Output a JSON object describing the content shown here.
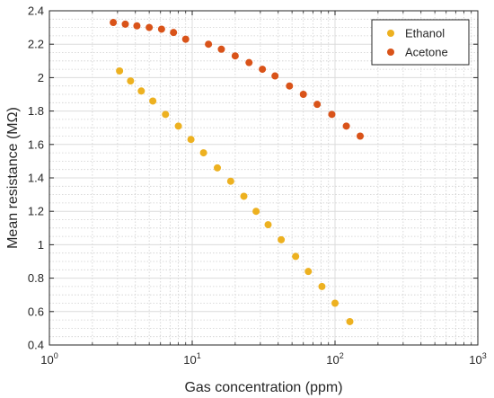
{
  "chart_data": {
    "type": "scatter",
    "title": "",
    "xlabel": "Gas concentration (ppm)",
    "ylabel": "Mean resistance (MΩ)",
    "xscale": "log",
    "xlim": [
      1,
      1000
    ],
    "ylim": [
      0.4,
      2.4
    ],
    "grid": true,
    "minor_grid": true,
    "legend_position": "top-right",
    "x_ticks": [
      {
        "value": 1,
        "base": "10",
        "exp": "0"
      },
      {
        "value": 10,
        "base": "10",
        "exp": "1"
      },
      {
        "value": 100,
        "base": "10",
        "exp": "2"
      },
      {
        "value": 1000,
        "base": "10",
        "exp": "3"
      }
    ],
    "y_ticks": [
      {
        "value": 0.4,
        "label": "0.4"
      },
      {
        "value": 0.6,
        "label": "0.6"
      },
      {
        "value": 0.8,
        "label": "0.8"
      },
      {
        "value": 1.0,
        "label": "1"
      },
      {
        "value": 1.2,
        "label": "1.2"
      },
      {
        "value": 1.4,
        "label": "1.4"
      },
      {
        "value": 1.6,
        "label": "1.6"
      },
      {
        "value": 1.8,
        "label": "1.8"
      },
      {
        "value": 2.0,
        "label": "2"
      },
      {
        "value": 2.2,
        "label": "2.2"
      },
      {
        "value": 2.4,
        "label": "2.4"
      }
    ],
    "series": [
      {
        "name": "Ethanol",
        "color": "#EDB120",
        "x": [
          3.1,
          3.7,
          4.4,
          5.3,
          6.5,
          8.0,
          9.8,
          12.0,
          15.0,
          18.6,
          23.0,
          28.0,
          34.0,
          42.0,
          53.0,
          65.0,
          81.0,
          100.0,
          127.0
        ],
        "y": [
          2.04,
          1.98,
          1.92,
          1.86,
          1.78,
          1.71,
          1.63,
          1.55,
          1.46,
          1.38,
          1.29,
          1.2,
          1.12,
          1.03,
          0.93,
          0.84,
          0.75,
          0.65,
          0.54
        ]
      },
      {
        "name": "Acetone",
        "color": "#D95319",
        "x": [
          2.8,
          3.4,
          4.1,
          5.0,
          6.1,
          7.4,
          9.0,
          13.0,
          16.0,
          20.0,
          25.0,
          31.0,
          38.0,
          48.0,
          60.0,
          75.0,
          95.0,
          120.0,
          150.0
        ],
        "y": [
          2.33,
          2.32,
          2.31,
          2.3,
          2.29,
          2.27,
          2.23,
          2.2,
          2.17,
          2.13,
          2.09,
          2.05,
          2.01,
          1.95,
          1.9,
          1.84,
          1.78,
          1.71,
          1.65
        ]
      }
    ]
  }
}
